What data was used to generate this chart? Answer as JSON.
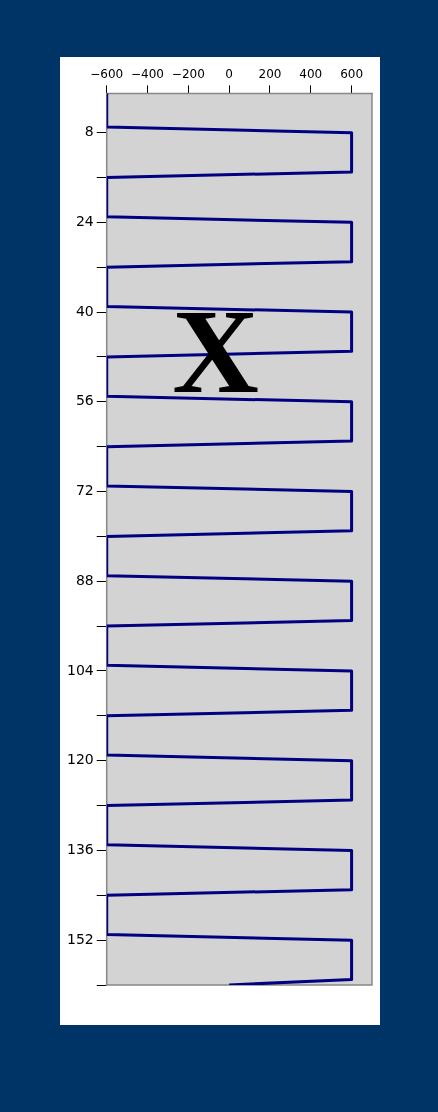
{
  "chart_data": {
    "type": "line",
    "x": [
      -600,
      -600,
      600,
      600,
      -600,
      -600,
      600,
      600,
      -600,
      -600,
      600,
      600,
      -600,
      -600,
      600,
      600,
      -600,
      -600,
      600,
      600,
      -600,
      -600,
      600,
      600,
      -600,
      -600,
      600,
      600,
      -600,
      -600,
      600,
      600,
      -600,
      -600,
      600,
      600,
      -600,
      -600,
      600,
      600,
      0
    ],
    "series": [
      {
        "color": "#000080",
        "values": [
          1,
          7,
          8,
          15,
          16,
          23,
          24,
          31,
          32,
          39,
          40,
          47,
          48,
          55,
          56,
          63,
          64,
          71,
          72,
          79,
          80,
          87,
          88,
          95,
          96,
          103,
          104,
          111,
          112,
          119,
          120,
          127,
          128,
          135,
          136,
          143,
          144,
          151,
          152,
          159,
          160
        ]
      }
    ],
    "xlim": [
      -600,
      700
    ],
    "xticks": [
      -600,
      -400,
      -200,
      0,
      200,
      400,
      600
    ],
    "ylim": [
      160,
      1
    ],
    "yticks": [
      8,
      {
        "value": 16,
        "label": null
      },
      24,
      {
        "value": 32,
        "label": null
      },
      40,
      {
        "value": 48,
        "label": null
      },
      56,
      {
        "value": 64,
        "label": null
      },
      72,
      {
        "value": 80,
        "label": null
      },
      88,
      {
        "value": 96,
        "label": null
      },
      104,
      {
        "value": 112,
        "label": null
      },
      120,
      {
        "value": 128,
        "label": null
      },
      136,
      {
        "value": 144,
        "label": null
      },
      152,
      {
        "value": 160,
        "label": null
      }
    ],
    "annotations": [
      "X"
    ],
    "grid": false,
    "legend": false,
    "marker": "none",
    "line_style": "solid"
  }
}
